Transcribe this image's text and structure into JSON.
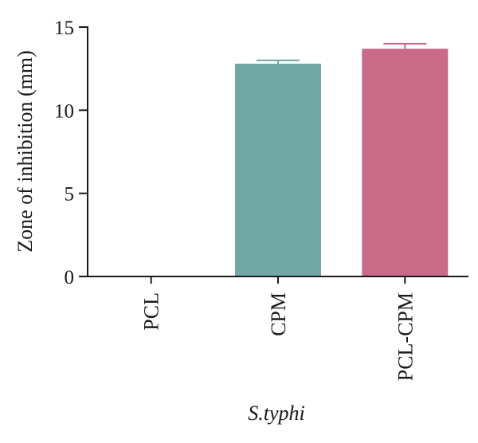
{
  "chart_data": {
    "type": "bar",
    "categories": [
      "PCL",
      "CPM",
      "PCL-CPM"
    ],
    "values": [
      0,
      12.8,
      13.7
    ],
    "errors": [
      0,
      0.2,
      0.3
    ],
    "colors": [
      "#6fa9a5",
      "#6fa9a5",
      "#c96a88"
    ],
    "ylabel": "Zone of inhibition (mm)",
    "xlabel": "S.typhi",
    "ylim": [
      0,
      15
    ],
    "yticks": [
      0,
      5,
      10,
      15
    ],
    "grid": false
  }
}
